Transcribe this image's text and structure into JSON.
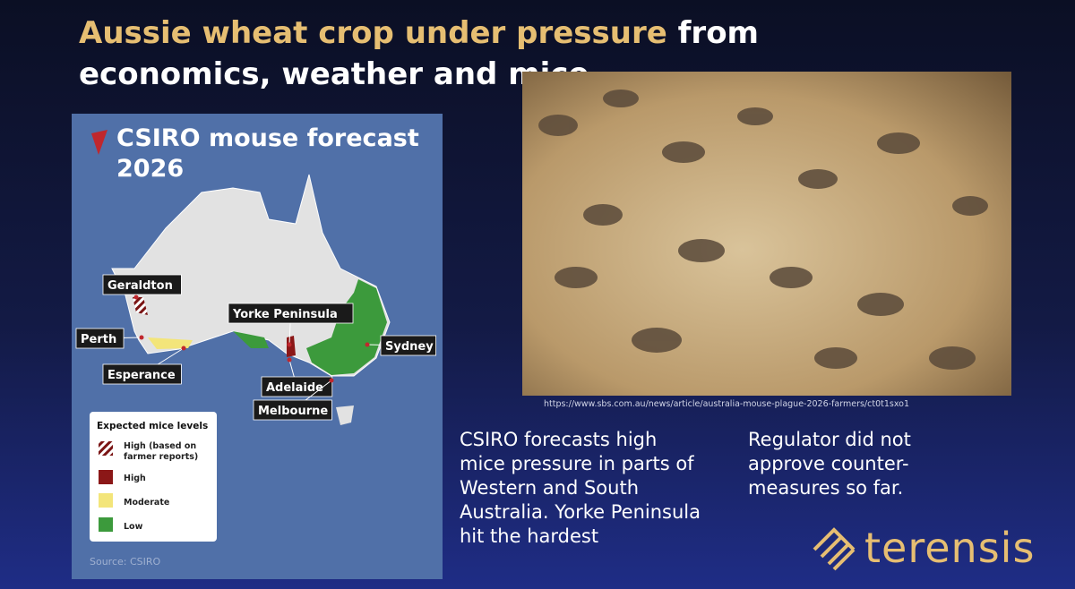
{
  "title": {
    "highlight": "Aussie wheat crop under pressure",
    "rest": "from economics, weather and mice"
  },
  "map": {
    "title": "CSIRO mouse forecast 2026",
    "labels": [
      "Geraldton",
      "Perth",
      "Esperance",
      "Yorke Peninsula",
      "Adelaide",
      "Sydney",
      "Melbourne"
    ],
    "legend": {
      "title": "Expected mice levels",
      "items": [
        "High (based on farmer reports)",
        "High",
        "Moderate",
        "Low"
      ]
    },
    "source": "Source: CSIRO"
  },
  "photo": {
    "caption": "https://www.sbs.com.au/news/article/australia-mouse-plague-2026-farmers/ct0t1sxo1"
  },
  "body": [
    "CSIRO forecasts high mice pressure in parts of Western and South Australia. Yorke Peninsula hit the hardest",
    "Regulator did not approve counter-measures so far."
  ],
  "logo": "terensis"
}
